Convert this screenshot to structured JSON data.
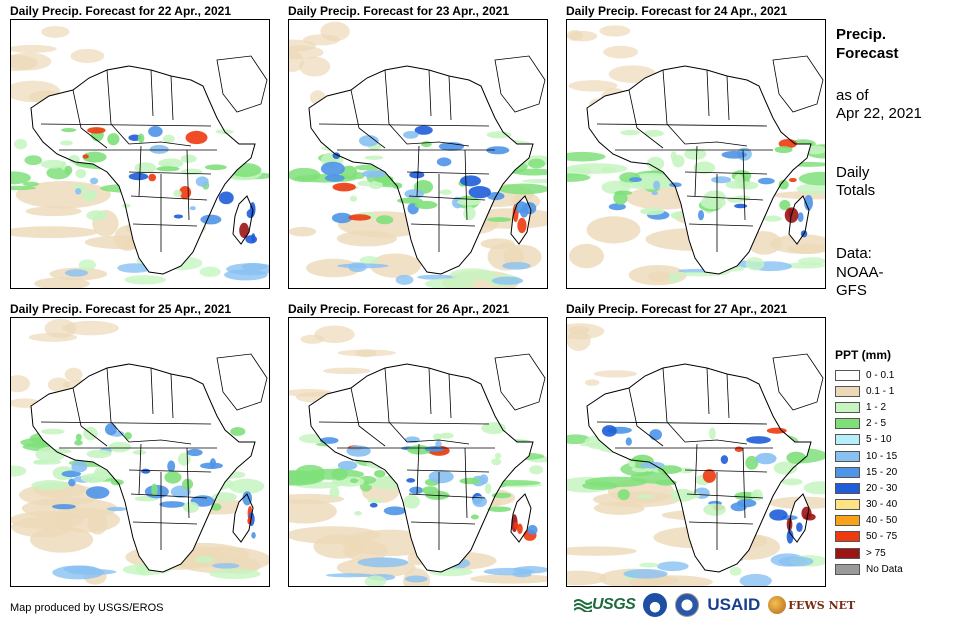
{
  "panels": [
    {
      "title": "Daily Precip. Forecast for 22 Apr., 2021"
    },
    {
      "title": "Daily Precip. Forecast for 23 Apr., 2021"
    },
    {
      "title": "Daily Precip. Forecast for 24 Apr., 2021"
    },
    {
      "title": "Daily Precip. Forecast for 25 Apr., 2021"
    },
    {
      "title": "Daily Precip. Forecast for 26 Apr., 2021"
    },
    {
      "title": "Daily Precip. Forecast for 27 Apr., 2021"
    }
  ],
  "sidebar": {
    "title_line1": "Precip.",
    "title_line2": "Forecast",
    "asof_line1": "as of",
    "asof_line2": "Apr 22, 2021",
    "totals_line1": "Daily",
    "totals_line2": "Totals",
    "data_line1": "Data:",
    "data_line2": "NOAA-",
    "data_line3": "GFS"
  },
  "legend": {
    "title": "PPT (mm)",
    "items": [
      {
        "label": "0 - 0.1",
        "color": "#ffffff"
      },
      {
        "label": "0.1 - 1",
        "color": "#ecd9b8"
      },
      {
        "label": "1 - 2",
        "color": "#c6f5c1"
      },
      {
        "label": "2 - 5",
        "color": "#7fe07a"
      },
      {
        "label": "5 - 10",
        "color": "#b8eefa"
      },
      {
        "label": "10 - 15",
        "color": "#88c0f2"
      },
      {
        "label": "15 - 20",
        "color": "#4e95e8"
      },
      {
        "label": "20 - 30",
        "color": "#1f5ed8"
      },
      {
        "label": "30 - 40",
        "color": "#fde383"
      },
      {
        "label": "40 - 50",
        "color": "#f7a21a"
      },
      {
        "label": "50 - 75",
        "color": "#ee3a10"
      },
      {
        "label": "> 75",
        "color": "#9c1414"
      },
      {
        "label": "No Data",
        "color": "#9a9a9a"
      }
    ]
  },
  "footer": {
    "credit": "Map produced by USGS/EROS",
    "logo_usgs": "USGS",
    "logo_usaid": "USAID",
    "logo_fews": "FEWS NET"
  }
}
